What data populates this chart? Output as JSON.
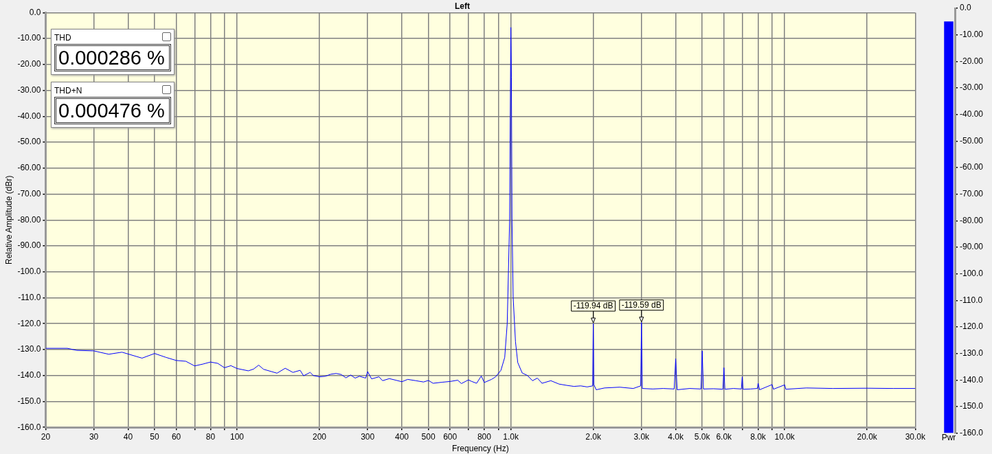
{
  "chart_data": [
    {
      "type": "line",
      "title": "Left",
      "xlabel": "Frequency (Hz)",
      "ylabel": "Relative Amplitude (dBr)",
      "log": "x",
      "grid": true,
      "legend": false,
      "marker": "none",
      "line_style": "solid",
      "xlim": [
        20,
        30000
      ],
      "xticks": [
        20,
        30,
        40,
        50,
        60,
        {
          "value": 70,
          "label": null
        },
        80,
        {
          "value": 90,
          "label": null
        },
        100,
        200,
        300,
        400,
        500,
        600,
        {
          "value": 700,
          "label": null
        },
        800,
        {
          "value": 900,
          "label": null
        },
        {
          "value": 1000,
          "label": "1.0k"
        },
        {
          "value": 2000,
          "label": "2.0k"
        },
        {
          "value": 3000,
          "label": "3.0k"
        },
        {
          "value": 4000,
          "label": "4.0k"
        },
        {
          "value": 5000,
          "label": "5.0k"
        },
        {
          "value": 6000,
          "label": "6.0k"
        },
        {
          "value": 7000,
          "label": null
        },
        {
          "value": 8000,
          "label": "8.0k"
        },
        {
          "value": 9000,
          "label": null
        },
        {
          "value": 10000,
          "label": "10.0k"
        },
        {
          "value": 20000,
          "label": "20.0k"
        },
        {
          "value": 30000,
          "label": "30.0k"
        }
      ],
      "ylim": [
        -160,
        0
      ],
      "yticks": [
        {
          "value": 0,
          "label": "0.0"
        },
        {
          "value": -10,
          "label": "-10.00"
        },
        {
          "value": -20,
          "label": "-20.00"
        },
        {
          "value": -30,
          "label": "-30.00"
        },
        {
          "value": -40,
          "label": "-40.00"
        },
        {
          "value": -50,
          "label": "-50.00"
        },
        {
          "value": -60,
          "label": "-60.00"
        },
        {
          "value": -70,
          "label": "-70.00"
        },
        {
          "value": -80,
          "label": "-80.00"
        },
        {
          "value": -90,
          "label": "-90.00"
        },
        {
          "value": -100,
          "label": "-100.0"
        },
        {
          "value": -110,
          "label": "-110.0"
        },
        {
          "value": -120,
          "label": "-120.0"
        },
        {
          "value": -130,
          "label": "-130.0"
        },
        {
          "value": -140,
          "label": "-140.0"
        },
        {
          "value": -150,
          "label": "-150.0"
        },
        {
          "value": -160,
          "label": "-160.0"
        }
      ],
      "series": [
        {
          "color": "#0000ff",
          "x": [
            20,
            24,
            26,
            30,
            34,
            38,
            45,
            50,
            55,
            60,
            65,
            70,
            75,
            80,
            85,
            90,
            95,
            100,
            110,
            115,
            120,
            125,
            140,
            150,
            160,
            170,
            175,
            185,
            190,
            200,
            210,
            220,
            230,
            240,
            250,
            260,
            270,
            280,
            295,
            300,
            310,
            330,
            340,
            360,
            380,
            400,
            420,
            450,
            480,
            500,
            520,
            560,
            600,
            640,
            660,
            700,
            720,
            750,
            780,
            800,
            850,
            880,
            920,
            950,
            970,
            980,
            990,
            995,
            1000,
            1005,
            1010,
            1020,
            1040,
            1060,
            1100,
            1150,
            1200,
            1250,
            1300,
            1400,
            1500,
            1600,
            1700,
            1800,
            1900,
            1990,
            2000,
            2010,
            2050,
            2200,
            2500,
            2800,
            2980,
            3000,
            3020,
            3300,
            3600,
            3950,
            4000,
            4050,
            4500,
            4950,
            5000,
            5050,
            5500,
            5950,
            6000,
            6050,
            6500,
            6950,
            7000,
            7050,
            7500,
            7950,
            8000,
            8100,
            9000,
            9100,
            10000,
            10100,
            12000,
            15000,
            20000,
            25000,
            30000
          ],
          "values": [
            -129.5,
            -129.5,
            -130.3,
            -130.5,
            -131.8,
            -131,
            -133.3,
            -131.5,
            -133,
            -134.2,
            -134.5,
            -136.3,
            -135.6,
            -134.8,
            -135.3,
            -137,
            -136.2,
            -137.3,
            -138.2,
            -137.5,
            -136,
            -137.6,
            -139.1,
            -137.2,
            -138.8,
            -138,
            -140.1,
            -138.8,
            -140,
            -140.5,
            -140.3,
            -139.5,
            -139.2,
            -139.6,
            -140.9,
            -139.8,
            -141,
            -140.3,
            -141,
            -138.5,
            -141.3,
            -140.5,
            -142,
            -141.2,
            -141.8,
            -142.4,
            -141.5,
            -142,
            -142.5,
            -141.9,
            -143,
            -142.6,
            -142.3,
            -141.8,
            -143.1,
            -141.7,
            -142.3,
            -143,
            -140.2,
            -142.7,
            -141.5,
            -140.5,
            -138,
            -133,
            -120,
            -100,
            -80,
            -40,
            -5.7,
            -25,
            -80,
            -110,
            -127,
            -135,
            -139,
            -140,
            -142,
            -141,
            -143,
            -142,
            -143.3,
            -143.8,
            -144.2,
            -144,
            -144.4,
            -144,
            -119.94,
            -143.5,
            -145.5,
            -144.8,
            -144.5,
            -145,
            -144,
            -119.59,
            -145,
            -145.2,
            -145,
            -145.2,
            -133.5,
            -145.5,
            -145,
            -145.2,
            -130.5,
            -145.2,
            -145.1,
            -145.3,
            -137,
            -145.3,
            -145,
            -145.2,
            -140.5,
            -145.3,
            -145.2,
            -145,
            -143,
            -145.5,
            -143.5,
            -145.3,
            -143.6,
            -145.3,
            -144.8,
            -145,
            -144.9,
            -145,
            -145
          ]
        }
      ],
      "annotations": [
        "THD",
        "0.000286 %",
        "THD+N",
        "0.000476 %",
        {
          "text": "-119.94 dB",
          "x": 2000,
          "y": -119.94
        },
        {
          "text": "-119.59 dB",
          "x": 3000,
          "y": -119.59
        }
      ]
    },
    {
      "type": "bar",
      "categories": [
        "Pwr"
      ],
      "values": [
        155
      ],
      "base": [
        -160
      ],
      "color": "#0000ff",
      "grid": false,
      "legend": false,
      "ylim": [
        -160,
        0
      ],
      "yticks": [
        {
          "value": 0,
          "label": "0.0"
        },
        {
          "value": -10,
          "label": "-10.00"
        },
        {
          "value": -20,
          "label": "-20.00"
        },
        {
          "value": -30,
          "label": "-30.00"
        },
        {
          "value": -40,
          "label": "-40.00"
        },
        {
          "value": -50,
          "label": "-50.00"
        },
        {
          "value": -60,
          "label": "-60.00"
        },
        {
          "value": -70,
          "label": "-70.00"
        },
        {
          "value": -80,
          "label": "-80.00"
        },
        {
          "value": -90,
          "label": "-90.00"
        },
        {
          "value": -100,
          "label": "-100.0"
        },
        {
          "value": -110,
          "label": "-110.0"
        },
        {
          "value": -120,
          "label": "-120.0"
        },
        {
          "value": -130,
          "label": "-130.0"
        },
        {
          "value": -140,
          "label": "-140.0"
        },
        {
          "value": -150,
          "label": "-150.0"
        },
        {
          "value": -160,
          "label": "-160.0"
        }
      ]
    }
  ]
}
